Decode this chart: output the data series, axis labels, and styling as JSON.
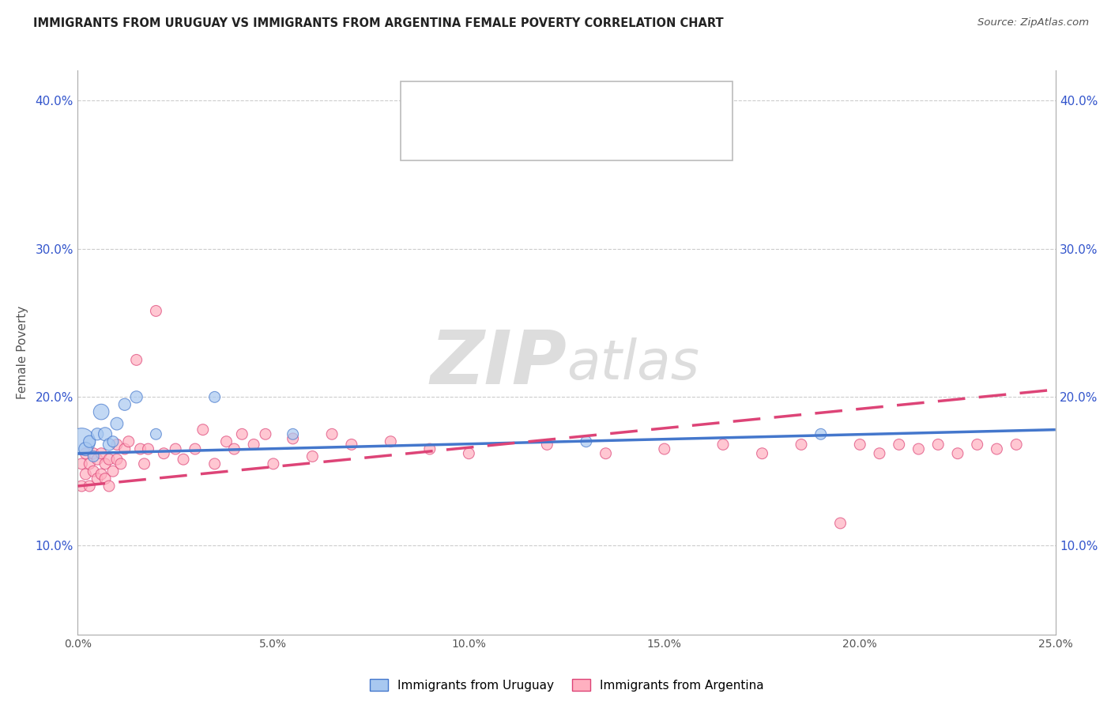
{
  "title": "IMMIGRANTS FROM URUGUAY VS IMMIGRANTS FROM ARGENTINA FEMALE POVERTY CORRELATION CHART",
  "source": "Source: ZipAtlas.com",
  "ylabel": "Female Poverty",
  "xlim": [
    0.0,
    0.25
  ],
  "ylim": [
    0.04,
    0.42
  ],
  "xticks": [
    0.0,
    0.05,
    0.1,
    0.15,
    0.2,
    0.25
  ],
  "xticklabels": [
    "0.0%",
    "5.0%",
    "10.0%",
    "15.0%",
    "20.0%",
    "25.0%"
  ],
  "yticks": [
    0.1,
    0.2,
    0.3,
    0.4
  ],
  "yticklabels": [
    "10.0%",
    "20.0%",
    "30.0%",
    "40.0%"
  ],
  "grid_color": "#cccccc",
  "watermark_zip": "ZIP",
  "watermark_atlas": "atlas",
  "color_uruguay": "#a8c8f0",
  "color_argentina": "#ffb0c0",
  "line_color_uruguay": "#4477cc",
  "line_color_argentina": "#dd4477",
  "legend_R_text_color": "#333333",
  "legend_val_color": "#3355cc",
  "uruguay_x": [
    0.001,
    0.002,
    0.003,
    0.004,
    0.005,
    0.006,
    0.007,
    0.008,
    0.009,
    0.01,
    0.012,
    0.015,
    0.02,
    0.035,
    0.055,
    0.13,
    0.19
  ],
  "uruguay_y": [
    0.17,
    0.165,
    0.17,
    0.16,
    0.175,
    0.19,
    0.175,
    0.168,
    0.17,
    0.182,
    0.195,
    0.2,
    0.175,
    0.2,
    0.175,
    0.17,
    0.175
  ],
  "uruguay_size": [
    600,
    150,
    120,
    100,
    120,
    200,
    150,
    120,
    100,
    130,
    120,
    120,
    100,
    100,
    100,
    100,
    100
  ],
  "argentina_x": [
    0.001,
    0.001,
    0.002,
    0.002,
    0.003,
    0.003,
    0.004,
    0.004,
    0.005,
    0.005,
    0.006,
    0.006,
    0.007,
    0.007,
    0.008,
    0.008,
    0.009,
    0.01,
    0.01,
    0.011,
    0.012,
    0.013,
    0.015,
    0.016,
    0.017,
    0.018,
    0.02,
    0.022,
    0.025,
    0.027,
    0.03,
    0.032,
    0.035,
    0.038,
    0.04,
    0.042,
    0.045,
    0.048,
    0.05,
    0.055,
    0.06,
    0.065,
    0.07,
    0.08,
    0.09,
    0.1,
    0.12,
    0.135,
    0.15,
    0.165,
    0.175,
    0.185,
    0.195,
    0.2,
    0.205,
    0.21,
    0.215,
    0.22,
    0.225,
    0.23,
    0.235,
    0.24
  ],
  "argentina_y": [
    0.14,
    0.155,
    0.148,
    0.162,
    0.14,
    0.155,
    0.15,
    0.162,
    0.145,
    0.158,
    0.148,
    0.162,
    0.145,
    0.155,
    0.14,
    0.158,
    0.15,
    0.158,
    0.168,
    0.155,
    0.165,
    0.17,
    0.225,
    0.165,
    0.155,
    0.165,
    0.258,
    0.162,
    0.165,
    0.158,
    0.165,
    0.178,
    0.155,
    0.17,
    0.165,
    0.175,
    0.168,
    0.175,
    0.155,
    0.172,
    0.16,
    0.175,
    0.168,
    0.17,
    0.165,
    0.162,
    0.168,
    0.162,
    0.165,
    0.168,
    0.162,
    0.168,
    0.115,
    0.168,
    0.162,
    0.168,
    0.165,
    0.168,
    0.162,
    0.168,
    0.165,
    0.168
  ],
  "argentina_size": [
    100,
    100,
    100,
    100,
    100,
    100,
    100,
    100,
    100,
    100,
    100,
    100,
    100,
    100,
    100,
    100,
    100,
    100,
    100,
    100,
    100,
    100,
    100,
    100,
    100,
    100,
    100,
    100,
    100,
    100,
    100,
    100,
    100,
    100,
    100,
    100,
    100,
    100,
    100,
    100,
    100,
    100,
    100,
    100,
    100,
    100,
    100,
    100,
    100,
    100,
    100,
    100,
    100,
    100,
    100,
    100,
    100,
    100,
    100,
    100,
    100,
    100
  ],
  "trendline_uru_x0": 0.0,
  "trendline_uru_y0": 0.162,
  "trendline_uru_x1": 0.25,
  "trendline_uru_y1": 0.178,
  "trendline_arg_x0": 0.0,
  "trendline_arg_y0": 0.14,
  "trendline_arg_x1": 0.25,
  "trendline_arg_y1": 0.205
}
